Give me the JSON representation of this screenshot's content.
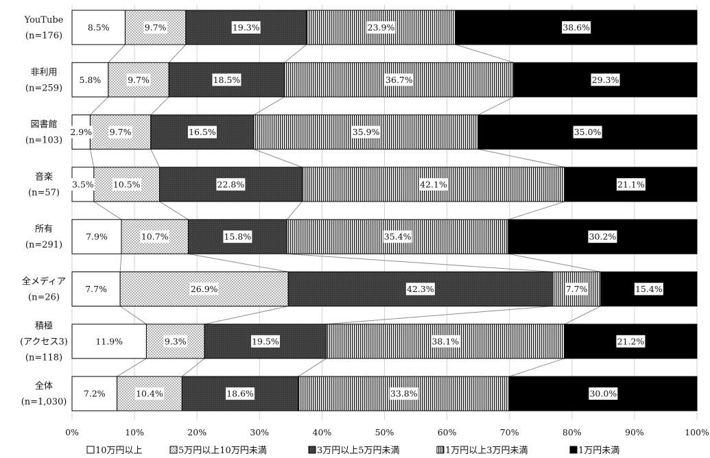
{
  "chart_data": {
    "type": "bar",
    "orientation": "horizontal",
    "stacked": "percent",
    "categories": [
      [
        "YouTube",
        "(n=176)"
      ],
      [
        "非利用",
        "(n=259)"
      ],
      [
        "図書館",
        "(n=103)"
      ],
      [
        "音楽",
        "(n=57)"
      ],
      [
        "所有",
        "(n=291)"
      ],
      [
        "全メディア",
        "(n=26)"
      ],
      [
        "積極",
        "(アクセス3)",
        "(n=118)"
      ],
      [
        "全体",
        "(n=1,030)"
      ]
    ],
    "series": [
      {
        "name": "10万円以上",
        "values": [
          8.5,
          5.8,
          2.9,
          3.5,
          7.9,
          7.7,
          11.9,
          7.2
        ],
        "labels": [
          "8.5%",
          "5.8%",
          "2.9%",
          "3.5%",
          "7.9%",
          "7.7%",
          "11.9%",
          "7.2%"
        ],
        "pattern": "white"
      },
      {
        "name": "5万円以上10万円未満",
        "values": [
          9.7,
          9.7,
          9.7,
          10.5,
          10.7,
          26.9,
          9.3,
          10.4
        ],
        "labels": [
          "9.7%",
          "9.7%",
          "9.7%",
          "10.5%",
          "10.7%",
          "26.9%",
          "9.3%",
          "10.4%"
        ],
        "pattern": "dots"
      },
      {
        "name": "3万円以上5万円未満",
        "values": [
          19.3,
          18.5,
          16.5,
          22.8,
          15.8,
          42.3,
          19.5,
          18.6
        ],
        "labels": [
          "19.3%",
          "18.5%",
          "16.5%",
          "22.8%",
          "15.8%",
          "42.3%",
          "19.5%",
          "18.6%"
        ],
        "pattern": "dark"
      },
      {
        "name": "1万円以上3万円未満",
        "values": [
          23.9,
          36.7,
          35.9,
          42.1,
          35.4,
          7.7,
          38.1,
          33.8
        ],
        "labels": [
          "23.9%",
          "36.7%",
          "35.9%",
          "42.1%",
          "35.4%",
          "7.7%",
          "38.1%",
          "33.8%"
        ],
        "pattern": "vlines"
      },
      {
        "name": "1万円未満",
        "values": [
          38.6,
          29.3,
          35.0,
          21.1,
          30.2,
          15.4,
          21.2,
          30.0
        ],
        "labels": [
          "38.6%",
          "29.3%",
          "35.0%",
          "21.1%",
          "30.2%",
          "15.4%",
          "21.2%",
          "30.0%"
        ],
        "pattern": "black"
      }
    ],
    "xticks": [
      "0%",
      "10%",
      "20%",
      "30%",
      "40%",
      "50%",
      "60%",
      "70%",
      "80%",
      "90%",
      "100%"
    ],
    "xlim": [
      0,
      100
    ],
    "grid": true,
    "series_lines": true,
    "legend": "bottom",
    "colors": {
      "white": "#ffffff",
      "dots": "#e8e8e8",
      "dark": "#3f3f3f",
      "vlines": "#cfcfcf",
      "black": "#000000",
      "connector": "#8c8c8c"
    }
  }
}
